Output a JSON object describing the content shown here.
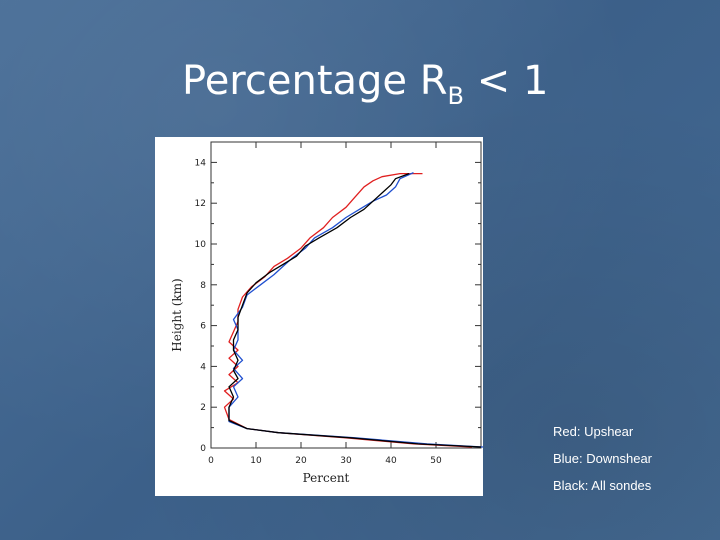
{
  "slide": {
    "title_main": "Percentage R",
    "title_sub": "B",
    "title_tail": " < 1"
  },
  "legend": [
    {
      "text": "Red: Upshear"
    },
    {
      "text": "Blue: Downshear"
    },
    {
      "text": "Black: All sondes"
    }
  ],
  "chart_data": {
    "type": "line",
    "xlabel": "Percent",
    "ylabel": "Height  (km)",
    "xlim": [
      0,
      60
    ],
    "ylim": [
      0,
      15
    ],
    "xticks": [
      0,
      10,
      20,
      30,
      40,
      50
    ],
    "yticks": [
      0,
      2,
      4,
      6,
      8,
      10,
      12,
      14
    ],
    "grid": false,
    "series": [
      {
        "color": "#e02020",
        "points": [
          [
            58,
            0.05
          ],
          [
            45,
            0.2
          ],
          [
            30,
            0.5
          ],
          [
            15,
            0.75
          ],
          [
            8,
            0.95
          ],
          [
            4,
            1.4
          ],
          [
            3,
            2.0
          ],
          [
            5,
            2.4
          ],
          [
            3,
            2.8
          ],
          [
            6,
            3.2
          ],
          [
            4,
            3.6
          ],
          [
            6,
            4.0
          ],
          [
            4,
            4.4
          ],
          [
            6,
            4.8
          ],
          [
            4,
            5.2
          ],
          [
            5,
            5.7
          ],
          [
            6,
            6.2
          ],
          [
            6,
            6.8
          ],
          [
            7,
            7.4
          ],
          [
            9,
            7.9
          ],
          [
            12,
            8.4
          ],
          [
            14,
            8.9
          ],
          [
            17,
            9.3
          ],
          [
            20,
            9.8
          ],
          [
            22,
            10.3
          ],
          [
            25,
            10.8
          ],
          [
            27,
            11.3
          ],
          [
            30,
            11.8
          ],
          [
            32,
            12.3
          ],
          [
            34,
            12.8
          ],
          [
            36,
            13.1
          ],
          [
            38,
            13.3
          ],
          [
            42,
            13.45
          ],
          [
            47,
            13.45
          ]
        ]
      },
      {
        "color": "#2050d0",
        "points": [
          [
            62,
            0.05
          ],
          [
            48,
            0.2
          ],
          [
            32,
            0.5
          ],
          [
            15,
            0.75
          ],
          [
            8,
            0.95
          ],
          [
            4,
            1.3
          ],
          [
            4,
            2.0
          ],
          [
            6,
            2.5
          ],
          [
            5,
            3.0
          ],
          [
            7,
            3.4
          ],
          [
            5,
            3.9
          ],
          [
            7,
            4.3
          ],
          [
            5,
            4.8
          ],
          [
            6,
            5.3
          ],
          [
            6,
            5.8
          ],
          [
            5,
            6.3
          ],
          [
            7,
            6.9
          ],
          [
            8,
            7.5
          ],
          [
            11,
            8.0
          ],
          [
            14,
            8.5
          ],
          [
            16,
            8.9
          ],
          [
            18,
            9.3
          ],
          [
            21,
            9.8
          ],
          [
            23,
            10.3
          ],
          [
            27,
            10.8
          ],
          [
            30,
            11.3
          ],
          [
            33,
            11.7
          ],
          [
            36,
            12.1
          ],
          [
            39,
            12.4
          ],
          [
            41,
            12.8
          ],
          [
            42,
            13.2
          ],
          [
            45,
            13.5
          ]
        ]
      },
      {
        "color": "#000000",
        "points": [
          [
            60,
            0.05
          ],
          [
            46,
            0.2
          ],
          [
            31,
            0.5
          ],
          [
            15,
            0.75
          ],
          [
            8,
            0.95
          ],
          [
            4,
            1.35
          ],
          [
            4,
            2.0
          ],
          [
            5,
            2.5
          ],
          [
            4,
            3.0
          ],
          [
            6,
            3.4
          ],
          [
            5,
            3.8
          ],
          [
            6,
            4.3
          ],
          [
            5,
            4.8
          ],
          [
            5,
            5.3
          ],
          [
            6,
            5.8
          ],
          [
            6,
            6.4
          ],
          [
            7,
            7.0
          ],
          [
            8,
            7.6
          ],
          [
            10,
            8.1
          ],
          [
            13,
            8.6
          ],
          [
            16,
            9.0
          ],
          [
            19,
            9.4
          ],
          [
            21,
            9.9
          ],
          [
            24,
            10.3
          ],
          [
            28,
            10.8
          ],
          [
            31,
            11.3
          ],
          [
            34,
            11.7
          ],
          [
            36,
            12.1
          ],
          [
            38,
            12.5
          ],
          [
            40,
            12.9
          ],
          [
            41,
            13.2
          ],
          [
            44,
            13.45
          ]
        ]
      }
    ]
  }
}
